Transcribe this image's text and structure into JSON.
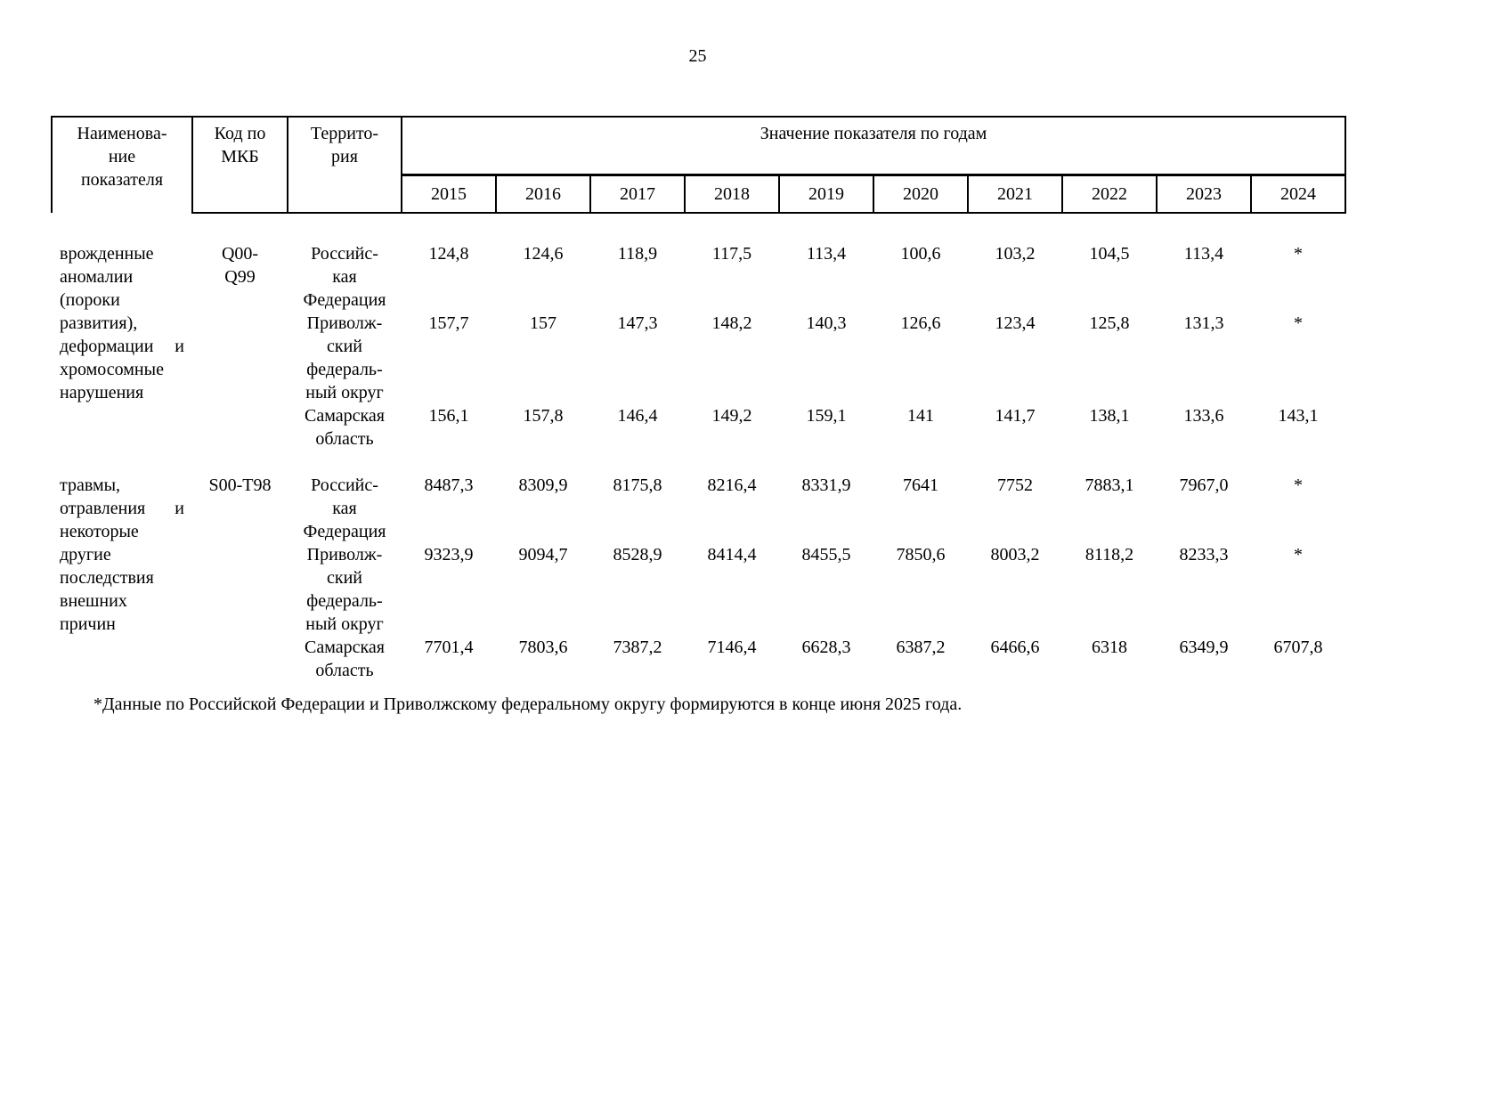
{
  "page": {
    "number": "25"
  },
  "table": {
    "header": {
      "col_name": "Наименова-\nние\nпоказателя",
      "col_code": "Код по\nМКБ",
      "col_territory": "Террито-\nрия",
      "values_label": "Значение показателя по годам",
      "years": [
        "2015",
        "2016",
        "2017",
        "2018",
        "2019",
        "2020",
        "2021",
        "2022",
        "2023",
        "2024"
      ]
    },
    "blocks": [
      {
        "name": "врожденные аномалии (пороки развития), деформации и хромосомные нарушения",
        "code": "Q00-\nQ99",
        "rows": [
          {
            "territory": "Российс-\nкая\nФедерация",
            "values": [
              "124,8",
              "124,6",
              "118,9",
              "117,5",
              "113,4",
              "100,6",
              "103,2",
              "104,5",
              "113,4",
              "*"
            ]
          },
          {
            "territory": "Приволж-\nский\nфедераль-\nный округ",
            "values": [
              "157,7",
              "157",
              "147,3",
              "148,2",
              "140,3",
              "126,6",
              "123,4",
              "125,8",
              "131,3",
              "*"
            ]
          },
          {
            "territory": "Самарская\nобласть",
            "values": [
              "156,1",
              "157,8",
              "146,4",
              "149,2",
              "159,1",
              "141",
              "141,7",
              "138,1",
              "133,6",
              "143,1"
            ]
          }
        ]
      },
      {
        "name": "травмы, отравления и некоторые другие последствия внешних причин",
        "code": "S00-T98",
        "rows": [
          {
            "territory": "Российс-\nкая\nФедерация",
            "values": [
              "8487,3",
              "8309,9",
              "8175,8",
              "8216,4",
              "8331,9",
              "7641",
              "7752",
              "7883,1",
              "7967,0",
              "*"
            ]
          },
          {
            "territory": "Приволж-\nский\nфедераль-\nный округ",
            "values": [
              "9323,9",
              "9094,7",
              "8528,9",
              "8414,4",
              "8455,5",
              "7850,6",
              "8003,2",
              "8118,2",
              "8233,3",
              "*"
            ]
          },
          {
            "territory": "Самарская\nобласть",
            "values": [
              "7701,4",
              "7803,6",
              "7387,2",
              "7146,4",
              "6628,3",
              "6387,2",
              "6466,6",
              "6318",
              "6349,9",
              "6707,8"
            ]
          }
        ]
      }
    ]
  },
  "footnote": "*Данные по Российской Федерации и Приволжскому федеральному округу формируются в конце июня 2025 года."
}
